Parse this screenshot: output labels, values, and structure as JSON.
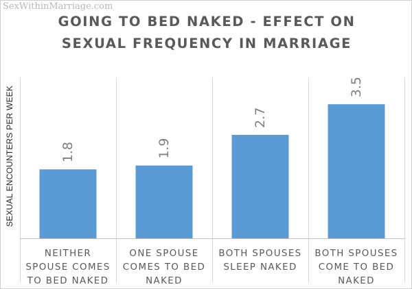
{
  "watermark": "SexWithinMarriage.com",
  "chart_data": {
    "type": "bar",
    "title": "GOING TO BED NAKED - EFFECT ON SEXUAL FREQUENCY IN MARRIAGE",
    "title_lines": [
      "GOING TO BED NAKED - EFFECT ON",
      "SEXUAL FREQUENCY IN MARRIAGE"
    ],
    "xlabel": "",
    "ylabel": "SEXUAL ENCOUNTERS PER WEEK",
    "categories": [
      "NEITHER SPOUSE COMES TO BED NAKED",
      "ONE SPOUSE COMES TO BED NAKED",
      "BOTH SPOUSES SLEEP NAKED",
      "BOTH SPOUSES COME TO BED NAKED"
    ],
    "category_lines": [
      [
        "NEITHER",
        "SPOUSE COMES",
        "TO BED NAKED"
      ],
      [
        "ONE SPOUSE",
        "COMES TO BED",
        "NAKED"
      ],
      [
        "BOTH SPOUSES",
        "SLEEP NAKED"
      ],
      [
        "BOTH SPOUSES",
        "COME TO BED",
        "NAKED"
      ]
    ],
    "values": [
      1.8,
      1.9,
      2.7,
      3.5
    ],
    "value_labels": [
      "1.8",
      "1.9",
      "2.7",
      "3.5"
    ],
    "ylim": [
      0,
      4.2
    ],
    "bar_color": "#5b9bd5",
    "grid": "vertical separators only",
    "legend": "none"
  }
}
